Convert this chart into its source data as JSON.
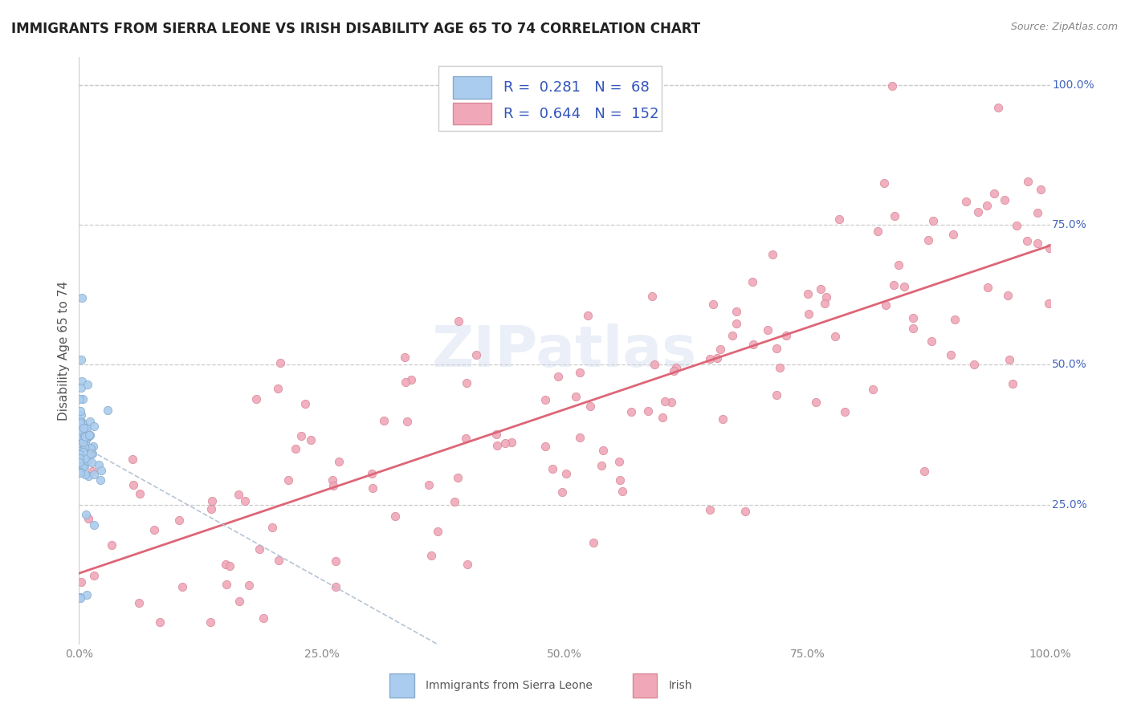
{
  "title": "IMMIGRANTS FROM SIERRA LEONE VS IRISH DISABILITY AGE 65 TO 74 CORRELATION CHART",
  "source": "Source: ZipAtlas.com",
  "ylabel": "Disability Age 65 to 74",
  "xlim": [
    0.0,
    1.0
  ],
  "ylim": [
    0.0,
    1.05
  ],
  "xtick_vals": [
    0.0,
    0.25,
    0.5,
    0.75,
    1.0
  ],
  "xtick_labels": [
    "0.0%",
    "25.0%",
    "50.0%",
    "75.0%",
    "100.0%"
  ],
  "ytick_vals": [
    0.25,
    0.5,
    0.75,
    1.0
  ],
  "ytick_labels": [
    "25.0%",
    "50.0%",
    "75.0%",
    "100.0%"
  ],
  "sierra_leone_R": 0.281,
  "sierra_leone_N": 68,
  "irish_R": 0.644,
  "irish_N": 152,
  "sierra_leone_color": "#aaccee",
  "sierra_leone_edge": "#88aacc",
  "irish_color": "#f0a8b8",
  "irish_edge": "#d88898",
  "sierra_leone_line_color": "#5577aa",
  "irish_line_color": "#dd6677",
  "legend_sierra_leone": "Immigrants from Sierra Leone",
  "legend_irish": "Irish",
  "watermark": "ZIPatlas",
  "background_color": "#ffffff",
  "grid_color": "#cccccc",
  "ytick_color": "#4466bb",
  "title_fontsize": 12,
  "axis_label_fontsize": 11,
  "tick_fontsize": 10,
  "stat_fontsize": 13,
  "stat_color": "#3355bb"
}
